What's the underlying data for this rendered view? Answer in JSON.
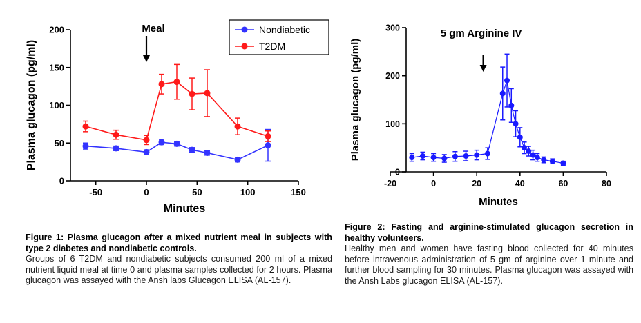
{
  "chart_data": [
    {
      "type": "line",
      "title": "",
      "xlabel": "Minutes",
      "ylabel": "Plasma glucagon (pg/ml)",
      "xlim": [
        -75,
        150
      ],
      "ylim": [
        0,
        200
      ],
      "x_ticks": [
        -50,
        0,
        50,
        100,
        150
      ],
      "y_ticks": [
        0,
        50,
        100,
        150,
        200
      ],
      "grid": false,
      "legend": "top-right",
      "annotation": {
        "text": "Meal",
        "x": 0
      },
      "series": [
        {
          "name": "Nondiabetic",
          "color": "#3333ff",
          "x": [
            -60,
            -30,
            0,
            15,
            30,
            45,
            60,
            90,
            120
          ],
          "values": [
            46,
            43,
            38,
            51,
            49,
            41,
            37,
            28,
            47
          ],
          "error": [
            4,
            3,
            3,
            3,
            3,
            3,
            3,
            3,
            21
          ]
        },
        {
          "name": "T2DM",
          "color": "#ff1a1a",
          "x": [
            -60,
            -30,
            0,
            15,
            30,
            45,
            60,
            90,
            120
          ],
          "values": [
            72,
            61,
            54,
            128,
            131,
            115,
            116,
            72,
            59
          ],
          "error": [
            7,
            6,
            6,
            13,
            23,
            21,
            31,
            11,
            7
          ]
        }
      ]
    },
    {
      "type": "line",
      "title": "",
      "xlabel": "Minutes",
      "ylabel": "Plasma glucagon (pg/ml)",
      "xlim": [
        -20,
        80
      ],
      "ylim": [
        0,
        300
      ],
      "x_ticks": [
        -20,
        0,
        20,
        40,
        60,
        80
      ],
      "y_ticks": [
        0,
        100,
        200,
        300
      ],
      "grid": false,
      "legend": "none",
      "annotation": {
        "text": "5 gm Arginine IV",
        "x": 23
      },
      "series": [
        {
          "color": "#1a1aff",
          "x": [
            -10,
            -5,
            0,
            5,
            10,
            15,
            20,
            25,
            32,
            34,
            36,
            38,
            40,
            42,
            44,
            46,
            48,
            51,
            55,
            60
          ],
          "values": [
            30,
            33,
            30,
            28,
            32,
            33,
            35,
            38,
            163,
            190,
            138,
            100,
            72,
            50,
            43,
            35,
            30,
            25,
            22,
            18
          ],
          "error": [
            8,
            8,
            8,
            8,
            10,
            10,
            10,
            12,
            55,
            55,
            35,
            27,
            20,
            12,
            10,
            10,
            8,
            6,
            5,
            4
          ]
        }
      ]
    }
  ],
  "captions": {
    "fig1": {
      "title": "Figure 1: Plasma glucagon after a mixed nutrient meal in subjects with type 2 diabetes and nondiabetic controls.",
      "body": "Groups of 6 T2DM and nondiabetic subjects consumed 200 ml of a mixed nutrient liquid meal at time 0 and plasma samples collected for 2 hours. Plasma glucagon was assayed with the Ansh labs Glucagon ELISA (AL-157)."
    },
    "fig2": {
      "title": "Figure 2: Fasting and arginine-stimulated glucagon secretion in healthy volunteers.",
      "body": "Healthy men and women have fasting blood collected for 40 minutes before intravenous administration of 5 gm of arginine over 1 minute and further blood sampling for 30 minutes. Plasma glucagon was assayed with the Ansh Labs glucagon ELISA (AL-157)."
    }
  }
}
